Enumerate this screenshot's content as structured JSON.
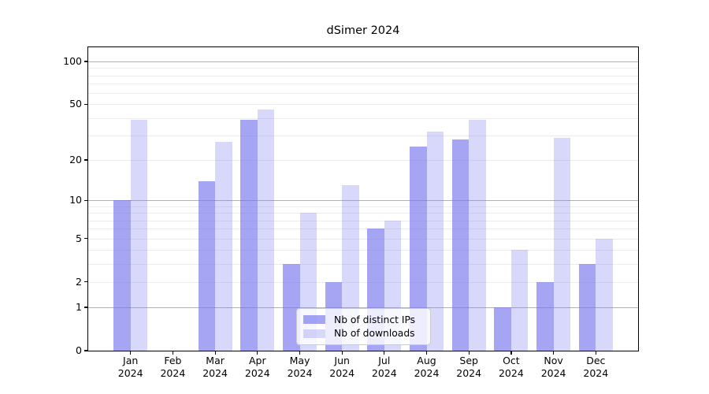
{
  "title": "dSimer 2024",
  "colors": {
    "bar_ips": "rgba(119,119,238,0.66)",
    "bar_downloads": "rgba(119,119,238,0.29)",
    "major_grid": "#b0b0b0",
    "minor_grid": "#ebebeb",
    "axis": "#000000"
  },
  "legend": {
    "items": [
      {
        "label": "Nb of distinct IPs",
        "swatch": "bar_ips"
      },
      {
        "label": "Nb of downloads",
        "swatch": "bar_downloads"
      }
    ]
  },
  "chart_data": {
    "type": "bar",
    "title": "dSimer 2024",
    "categories": [
      "Jan 2024",
      "Feb 2024",
      "Mar 2024",
      "Apr 2024",
      "May 2024",
      "Jun 2024",
      "Jul 2024",
      "Aug 2024",
      "Sep 2024",
      "Oct 2024",
      "Nov 2024",
      "Dec 2024"
    ],
    "series": [
      {
        "name": "Nb of distinct IPs",
        "values": [
          10,
          0,
          14,
          39,
          3,
          2,
          6,
          25,
          28,
          1,
          2,
          3
        ]
      },
      {
        "name": "Nb of downloads",
        "values": [
          39,
          0,
          27,
          46,
          8,
          13,
          7,
          32,
          39,
          4,
          29,
          5
        ]
      }
    ],
    "xlabel": "",
    "ylabel": "",
    "yscale": "log1p",
    "ylim": [
      0,
      125
    ],
    "y_ticks": [
      0,
      1,
      2,
      5,
      10,
      20,
      50,
      100
    ],
    "gridlines": {
      "major": [
        1,
        10,
        100
      ],
      "minor": [
        2,
        3,
        4,
        5,
        6,
        7,
        8,
        9,
        20,
        30,
        40,
        50,
        60,
        70,
        80,
        90
      ]
    },
    "grid": true,
    "legend_position": "lower center"
  }
}
